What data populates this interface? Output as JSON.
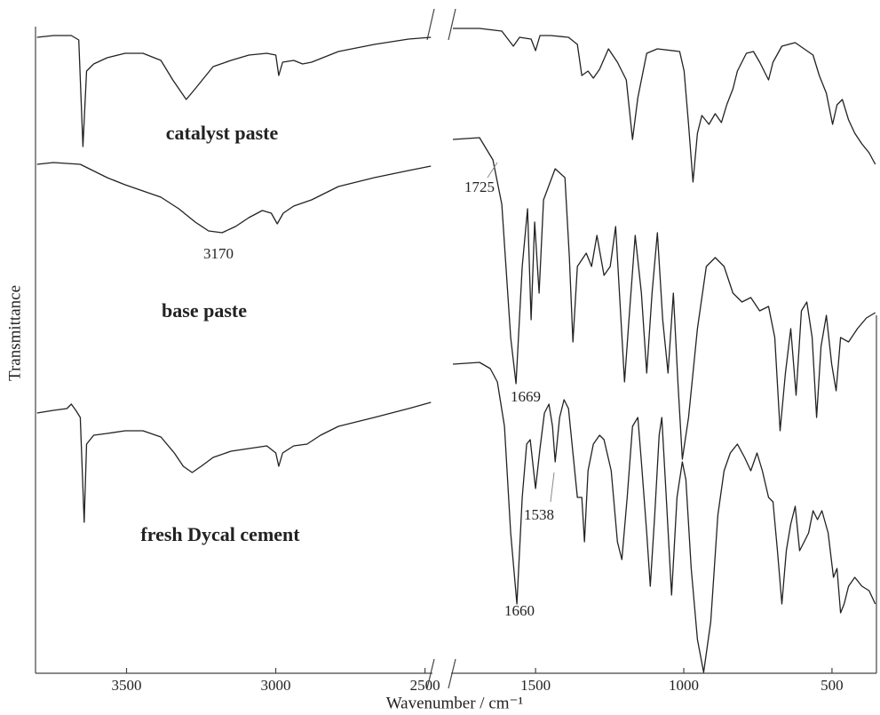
{
  "chart_data": {
    "type": "line",
    "xlabel": "Wavenumber / cm⁻¹",
    "ylabel": "Transmittance",
    "panels": [
      {
        "xlim": [
          3805,
          2475
        ],
        "xticks": [
          3500,
          3000,
          2500
        ]
      },
      {
        "xlim": [
          1785,
          350
        ],
        "xticks": [
          1500,
          1000,
          500
        ]
      }
    ],
    "ylim": [
      -23,
      705
    ],
    "series": [
      {
        "name": "catalyst paste",
        "color": "#222222",
        "x": [
          3800,
          3745,
          3685,
          3660,
          3646,
          3634,
          3610,
          3565,
          3505,
          3445,
          3385,
          3345,
          3300,
          3270,
          3210,
          3150,
          3090,
          3030,
          3000,
          2990,
          2977,
          2940,
          2910,
          2880,
          2850,
          2790,
          2670,
          2555,
          2480,
          1779,
          1689,
          1614,
          1575,
          1554,
          1515,
          1500,
          1485,
          1449,
          1389,
          1359,
          1344,
          1323,
          1305,
          1284,
          1254,
          1224,
          1194,
          1173,
          1155,
          1125,
          1089,
          1014,
          999,
          984,
          969,
          954,
          939,
          915,
          894,
          873,
          855,
          834,
          819,
          789,
          765,
          744,
          714,
          699,
          669,
          624,
          594,
          564,
          543,
          519,
          498,
          483,
          465,
          444,
          423,
          399,
          375,
          354
        ],
        "values": [
          693,
          695,
          695,
          690,
          570,
          655,
          663,
          670,
          675,
          675,
          667,
          645,
          623,
          635,
          660,
          667,
          673,
          675,
          673,
          650,
          665,
          667,
          663,
          665,
          669,
          677,
          685,
          691,
          693,
          703,
          703,
          700,
          683,
          693,
          691,
          678,
          695,
          695,
          693,
          685,
          650,
          655,
          647,
          657,
          680,
          665,
          645,
          578,
          625,
          675,
          680,
          677,
          655,
          595,
          530,
          585,
          605,
          595,
          607,
          597,
          617,
          635,
          655,
          675,
          677,
          665,
          645,
          665,
          683,
          687,
          680,
          673,
          650,
          630,
          595,
          617,
          623,
          600,
          585,
          573,
          563,
          550
        ]
      },
      {
        "name": "base paste",
        "color": "#222222",
        "x": [
          3800,
          3745,
          3655,
          3625,
          3565,
          3505,
          3445,
          3385,
          3325,
          3270,
          3225,
          3180,
          3135,
          3090,
          3045,
          3015,
          2995,
          2975,
          2940,
          2880,
          2790,
          2670,
          2555,
          2480,
          1779,
          1689,
          1644,
          1614,
          1584,
          1566,
          1545,
          1527,
          1515,
          1503,
          1488,
          1473,
          1434,
          1401,
          1386,
          1374,
          1359,
          1329,
          1311,
          1293,
          1269,
          1248,
          1230,
          1212,
          1200,
          1185,
          1164,
          1143,
          1125,
          1107,
          1089,
          1071,
          1053,
          1035,
          1020,
          1005,
          984,
          954,
          924,
          894,
          864,
          834,
          804,
          774,
          744,
          714,
          693,
          675,
          657,
          639,
          621,
          603,
          585,
          567,
          552,
          537,
          519,
          501,
          486,
          471,
          444,
          414,
          384,
          354
        ],
        "values": [
          550,
          552,
          550,
          545,
          535,
          527,
          520,
          513,
          500,
          485,
          475,
          473,
          480,
          490,
          498,
          495,
          483,
          495,
          503,
          510,
          525,
          535,
          543,
          548,
          578,
          580,
          555,
          505,
          355,
          303,
          435,
          500,
          375,
          485,
          405,
          510,
          545,
          535,
          445,
          350,
          435,
          450,
          435,
          470,
          425,
          435,
          480,
          375,
          305,
          375,
          470,
          405,
          315,
          405,
          473,
          375,
          315,
          405,
          305,
          218,
          265,
          365,
          435,
          445,
          435,
          405,
          395,
          400,
          385,
          390,
          355,
          250,
          315,
          365,
          290,
          385,
          395,
          355,
          265,
          345,
          380,
          325,
          295,
          355,
          350,
          365,
          377,
          383
        ]
      },
      {
        "name": "fresh Dycal cement",
        "color": "#222222",
        "x": [
          3800,
          3745,
          3700,
          3685,
          3670,
          3655,
          3642,
          3634,
          3610,
          3565,
          3505,
          3445,
          3385,
          3340,
          3310,
          3280,
          3250,
          3210,
          3150,
          3090,
          3030,
          3000,
          2990,
          2977,
          2940,
          2895,
          2850,
          2790,
          2670,
          2555,
          2480,
          1779,
          1689,
          1653,
          1629,
          1605,
          1584,
          1563,
          1545,
          1530,
          1518,
          1500,
          1485,
          1470,
          1455,
          1443,
          1434,
          1419,
          1404,
          1389,
          1374,
          1359,
          1344,
          1335,
          1323,
          1305,
          1284,
          1269,
          1245,
          1224,
          1209,
          1191,
          1173,
          1155,
          1143,
          1125,
          1113,
          1098,
          1083,
          1074,
          1059,
          1041,
          1023,
          1005,
          993,
          975,
          954,
          933,
          909,
          885,
          864,
          843,
          819,
          795,
          774,
          753,
          735,
          714,
          699,
          684,
          669,
          654,
          639,
          624,
          609,
          594,
          579,
          564,
          549,
          534,
          513,
          495,
          483,
          471,
          459,
          444,
          423,
          399,
          375,
          354
        ],
        "values": [
          270,
          273,
          275,
          280,
          273,
          265,
          147,
          235,
          245,
          247,
          250,
          250,
          243,
          225,
          210,
          203,
          210,
          220,
          227,
          230,
          233,
          225,
          210,
          225,
          233,
          235,
          245,
          255,
          265,
          275,
          282,
          325,
          327,
          320,
          305,
          255,
          135,
          55,
          175,
          235,
          240,
          185,
          230,
          270,
          280,
          255,
          215,
          265,
          285,
          275,
          225,
          175,
          175,
          125,
          205,
          235,
          245,
          240,
          205,
          125,
          105,
          175,
          255,
          265,
          215,
          135,
          75,
          155,
          245,
          265,
          175,
          65,
          175,
          215,
          195,
          95,
          15,
          -22,
          35,
          155,
          205,
          225,
          235,
          220,
          205,
          225,
          205,
          175,
          170,
          115,
          55,
          115,
          145,
          165,
          115,
          125,
          135,
          160,
          150,
          160,
          135,
          85,
          95,
          45,
          55,
          75,
          85,
          75,
          70,
          55
        ]
      }
    ],
    "annotations": [
      "3170",
      "1725",
      "1669",
      "1538",
      "1660"
    ]
  }
}
